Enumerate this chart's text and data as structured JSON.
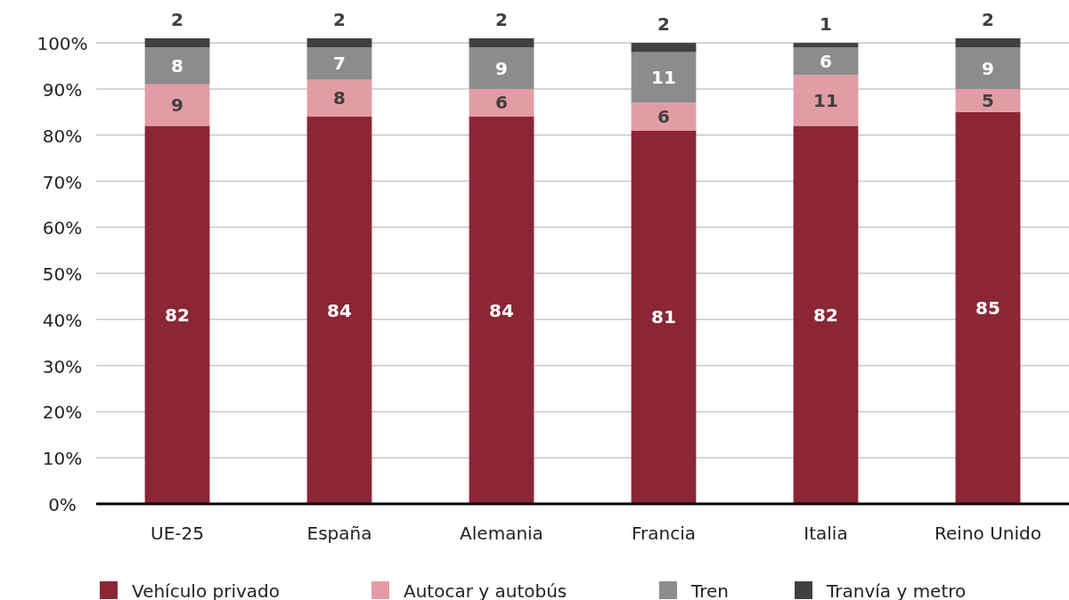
{
  "chart_data": {
    "type": "bar",
    "stacked": true,
    "categories": [
      "UE-25",
      "España",
      "Alemania",
      "Francia",
      "Italia",
      "Reino Unido"
    ],
    "series": [
      {
        "name": "Vehículo privado",
        "color": "#8b2635",
        "values": [
          82,
          84,
          84,
          81,
          82,
          85
        ]
      },
      {
        "name": "Autocar y autobús",
        "color": "#e39ca5",
        "values": [
          9,
          8,
          6,
          6,
          11,
          5
        ]
      },
      {
        "name": "Tren",
        "color": "#8c8c8c",
        "values": [
          8,
          7,
          9,
          11,
          6,
          9
        ]
      },
      {
        "name": "Tranvía y metro",
        "color": "#404040",
        "values": [
          2,
          2,
          2,
          2,
          1,
          2
        ]
      }
    ],
    "ylim": [
      0,
      101
    ],
    "yticks": [
      {
        "value": 0,
        "label": "0%"
      },
      {
        "value": 10,
        "label": "10%"
      },
      {
        "value": 20,
        "label": "20%"
      },
      {
        "value": 30,
        "label": "30%"
      },
      {
        "value": 40,
        "label": "40%"
      },
      {
        "value": 50,
        "label": "50%"
      },
      {
        "value": 60,
        "label": "60%"
      },
      {
        "value": 70,
        "label": "70%"
      },
      {
        "value": 80,
        "label": "80%"
      },
      {
        "value": 90,
        "label": "90%"
      },
      {
        "value": 100,
        "label": "100%"
      }
    ],
    "grid": "y",
    "legend": "bottom",
    "data_labels": true
  }
}
